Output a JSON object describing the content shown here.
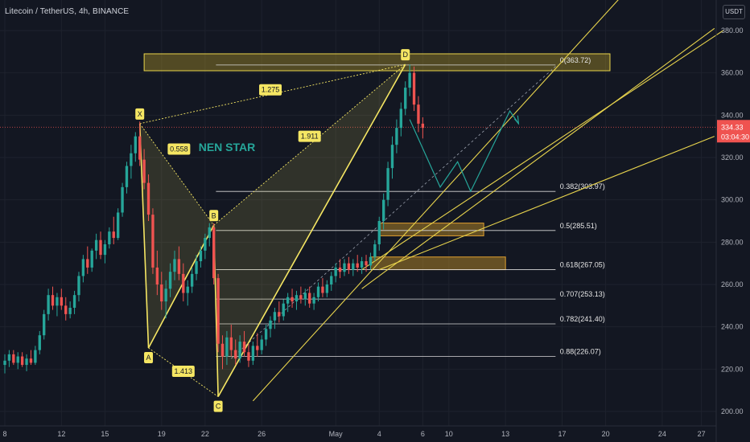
{
  "header": {
    "symbol_line": "Litecoin / TetherUS, 4h, BINANCE",
    "currency_button": "USDT"
  },
  "colors": {
    "background": "#131722",
    "up": "#26a69a",
    "down": "#ef5350",
    "pattern": "#f5e663",
    "zone_fill": "#c9a227",
    "price_tag": "#ef5350"
  },
  "current_price": {
    "value": 334.33,
    "label": "334.33",
    "countdown": "03:04:30"
  },
  "chart_data": {
    "type": "candlestick",
    "y_range": [
      198,
      388
    ],
    "x_range": [
      0,
      160
    ],
    "y_ticks": [
      200,
      220,
      240,
      260,
      280,
      300,
      320,
      340,
      360,
      380
    ],
    "y_tick_labels": [
      "200.00",
      "220.00",
      "240.00",
      "260.00",
      "280.00",
      "300.00",
      "320.00",
      "340.00",
      "360.00",
      "380.00"
    ],
    "x_ticks": [
      {
        "label": "8",
        "bar": 0
      },
      {
        "label": "12",
        "bar": 13
      },
      {
        "label": "15",
        "bar": 23
      },
      {
        "label": "19",
        "bar": 36
      },
      {
        "label": "22",
        "bar": 46
      },
      {
        "label": "26",
        "bar": 59
      },
      {
        "label": "May",
        "bar": 76
      },
      {
        "label": "4",
        "bar": 86
      },
      {
        "label": "6",
        "bar": 96
      },
      {
        "label": "10",
        "bar": 102
      },
      {
        "label": "13",
        "bar": 115
      },
      {
        "label": "17",
        "bar": 128
      },
      {
        "label": "20",
        "bar": 138
      },
      {
        "label": "24",
        "bar": 151
      },
      {
        "label": "27",
        "bar": 160
      }
    ],
    "harmonic_points": [
      {
        "label": "X",
        "bar": 31,
        "price": 336
      },
      {
        "label": "A",
        "bar": 33,
        "price": 230
      },
      {
        "label": "B",
        "bar": 48,
        "price": 288
      },
      {
        "label": "C",
        "bar": 49,
        "price": 207
      },
      {
        "label": "D",
        "bar": 92,
        "price": 364
      }
    ],
    "ratios": [
      {
        "label": "0.558",
        "bar": 40,
        "price": 324
      },
      {
        "label": "1.413",
        "bar": 41,
        "price": 219
      },
      {
        "label": "1.911",
        "bar": 70,
        "price": 330
      },
      {
        "label": "1.275",
        "bar": 61,
        "price": 352
      }
    ],
    "pattern_name": "NEN STAR",
    "fib_levels": [
      {
        "ratio": 0,
        "price": 363.72,
        "label": "0(363.72)"
      },
      {
        "ratio": 0.382,
        "price": 303.97,
        "label": "0.382(303.97)"
      },
      {
        "ratio": 0.5,
        "price": 285.51,
        "label": "0.5(285.51)"
      },
      {
        "ratio": 0.618,
        "price": 267.05,
        "label": "0.618(267.05)"
      },
      {
        "ratio": 0.707,
        "price": 253.13,
        "label": "0.707(253.13)"
      },
      {
        "ratio": 0.782,
        "price": 241.4,
        "label": "0.782(241.40)"
      },
      {
        "ratio": 0.88,
        "price": 226.07,
        "label": "0.88(226.07)"
      }
    ],
    "zones": [
      {
        "bar_from": 32,
        "bar_to": 139,
        "price_low": 361,
        "price_high": 369
      },
      {
        "bar_from": 86,
        "bar_to": 110,
        "price_low": 283,
        "price_high": 289
      },
      {
        "bar_from": 84,
        "bar_to": 115,
        "price_low": 267,
        "price_high": 273
      }
    ],
    "projection_path": [
      {
        "bar": 93,
        "price": 338
      },
      {
        "bar": 100,
        "price": 306
      },
      {
        "bar": 104,
        "price": 318
      },
      {
        "bar": 107,
        "price": 304
      },
      {
        "bar": 116,
        "price": 342
      },
      {
        "bar": 118,
        "price": 336
      }
    ],
    "candles": [
      {
        "o": 222,
        "h": 227,
        "l": 218,
        "c": 224
      },
      {
        "o": 224,
        "h": 229,
        "l": 221,
        "c": 227
      },
      {
        "o": 227,
        "h": 229,
        "l": 222,
        "c": 223
      },
      {
        "o": 223,
        "h": 228,
        "l": 220,
        "c": 226
      },
      {
        "o": 226,
        "h": 228,
        "l": 221,
        "c": 222
      },
      {
        "o": 222,
        "h": 227,
        "l": 219,
        "c": 225
      },
      {
        "o": 225,
        "h": 229,
        "l": 222,
        "c": 223
      },
      {
        "o": 223,
        "h": 231,
        "l": 222,
        "c": 229
      },
      {
        "o": 229,
        "h": 238,
        "l": 227,
        "c": 236
      },
      {
        "o": 236,
        "h": 248,
        "l": 234,
        "c": 246
      },
      {
        "o": 246,
        "h": 258,
        "l": 243,
        "c": 255
      },
      {
        "o": 255,
        "h": 259,
        "l": 248,
        "c": 250
      },
      {
        "o": 250,
        "h": 256,
        "l": 245,
        "c": 254
      },
      {
        "o": 254,
        "h": 258,
        "l": 248,
        "c": 250
      },
      {
        "o": 250,
        "h": 254,
        "l": 243,
        "c": 246
      },
      {
        "o": 246,
        "h": 252,
        "l": 244,
        "c": 249
      },
      {
        "o": 249,
        "h": 257,
        "l": 246,
        "c": 255
      },
      {
        "o": 255,
        "h": 266,
        "l": 252,
        "c": 264
      },
      {
        "o": 264,
        "h": 274,
        "l": 261,
        "c": 272
      },
      {
        "o": 272,
        "h": 278,
        "l": 265,
        "c": 268
      },
      {
        "o": 268,
        "h": 277,
        "l": 266,
        "c": 276
      },
      {
        "o": 276,
        "h": 284,
        "l": 272,
        "c": 281
      },
      {
        "o": 281,
        "h": 285,
        "l": 272,
        "c": 274
      },
      {
        "o": 274,
        "h": 281,
        "l": 270,
        "c": 279
      },
      {
        "o": 279,
        "h": 287,
        "l": 277,
        "c": 285
      },
      {
        "o": 285,
        "h": 292,
        "l": 279,
        "c": 282
      },
      {
        "o": 282,
        "h": 296,
        "l": 281,
        "c": 294
      },
      {
        "o": 294,
        "h": 308,
        "l": 292,
        "c": 306
      },
      {
        "o": 306,
        "h": 318,
        "l": 303,
        "c": 316
      },
      {
        "o": 316,
        "h": 326,
        "l": 310,
        "c": 322
      },
      {
        "o": 322,
        "h": 332,
        "l": 318,
        "c": 330
      },
      {
        "o": 330,
        "h": 337,
        "l": 316,
        "c": 319
      },
      {
        "o": 319,
        "h": 324,
        "l": 305,
        "c": 308
      },
      {
        "o": 308,
        "h": 312,
        "l": 290,
        "c": 293
      },
      {
        "o": 293,
        "h": 296,
        "l": 265,
        "c": 268
      },
      {
        "o": 268,
        "h": 276,
        "l": 255,
        "c": 260
      },
      {
        "o": 260,
        "h": 266,
        "l": 248,
        "c": 252
      },
      {
        "o": 252,
        "h": 262,
        "l": 244,
        "c": 258
      },
      {
        "o": 258,
        "h": 270,
        "l": 254,
        "c": 266
      },
      {
        "o": 266,
        "h": 276,
        "l": 262,
        "c": 272
      },
      {
        "o": 272,
        "h": 278,
        "l": 262,
        "c": 265
      },
      {
        "o": 265,
        "h": 270,
        "l": 252,
        "c": 256
      },
      {
        "o": 256,
        "h": 262,
        "l": 250,
        "c": 259
      },
      {
        "o": 259,
        "h": 268,
        "l": 256,
        "c": 265
      },
      {
        "o": 265,
        "h": 274,
        "l": 262,
        "c": 271
      },
      {
        "o": 271,
        "h": 278,
        "l": 268,
        "c": 276
      },
      {
        "o": 276,
        "h": 284,
        "l": 272,
        "c": 282
      },
      {
        "o": 282,
        "h": 289,
        "l": 278,
        "c": 287
      },
      {
        "o": 287,
        "h": 289,
        "l": 260,
        "c": 263
      },
      {
        "o": 263,
        "h": 265,
        "l": 228,
        "c": 232
      },
      {
        "o": 232,
        "h": 236,
        "l": 220,
        "c": 226
      },
      {
        "o": 226,
        "h": 238,
        "l": 222,
        "c": 235
      },
      {
        "o": 235,
        "h": 241,
        "l": 226,
        "c": 229
      },
      {
        "o": 229,
        "h": 234,
        "l": 222,
        "c": 225
      },
      {
        "o": 225,
        "h": 236,
        "l": 223,
        "c": 233
      },
      {
        "o": 233,
        "h": 238,
        "l": 226,
        "c": 228
      },
      {
        "o": 228,
        "h": 232,
        "l": 221,
        "c": 224
      },
      {
        "o": 224,
        "h": 233,
        "l": 222,
        "c": 231
      },
      {
        "o": 231,
        "h": 237,
        "l": 226,
        "c": 229
      },
      {
        "o": 229,
        "h": 236,
        "l": 227,
        "c": 234
      },
      {
        "o": 234,
        "h": 241,
        "l": 231,
        "c": 239
      },
      {
        "o": 239,
        "h": 245,
        "l": 235,
        "c": 243
      },
      {
        "o": 243,
        "h": 249,
        "l": 239,
        "c": 247
      },
      {
        "o": 247,
        "h": 252,
        "l": 242,
        "c": 245
      },
      {
        "o": 245,
        "h": 253,
        "l": 243,
        "c": 251
      },
      {
        "o": 251,
        "h": 256,
        "l": 247,
        "c": 254
      },
      {
        "o": 254,
        "h": 258,
        "l": 249,
        "c": 252
      },
      {
        "o": 252,
        "h": 257,
        "l": 248,
        "c": 255
      },
      {
        "o": 255,
        "h": 259,
        "l": 251,
        "c": 253
      },
      {
        "o": 253,
        "h": 258,
        "l": 250,
        "c": 256
      },
      {
        "o": 256,
        "h": 259,
        "l": 249,
        "c": 251
      },
      {
        "o": 251,
        "h": 256,
        "l": 248,
        "c": 254
      },
      {
        "o": 254,
        "h": 261,
        "l": 252,
        "c": 259
      },
      {
        "o": 259,
        "h": 263,
        "l": 254,
        "c": 256
      },
      {
        "o": 256,
        "h": 262,
        "l": 254,
        "c": 260
      },
      {
        "o": 260,
        "h": 266,
        "l": 257,
        "c": 264
      },
      {
        "o": 264,
        "h": 270,
        "l": 261,
        "c": 268
      },
      {
        "o": 268,
        "h": 272,
        "l": 263,
        "c": 266
      },
      {
        "o": 266,
        "h": 272,
        "l": 264,
        "c": 270
      },
      {
        "o": 270,
        "h": 273,
        "l": 265,
        "c": 267
      },
      {
        "o": 267,
        "h": 272,
        "l": 264,
        "c": 270
      },
      {
        "o": 270,
        "h": 274,
        "l": 266,
        "c": 268
      },
      {
        "o": 268,
        "h": 273,
        "l": 265,
        "c": 271
      },
      {
        "o": 271,
        "h": 274,
        "l": 266,
        "c": 269
      },
      {
        "o": 269,
        "h": 275,
        "l": 267,
        "c": 273
      },
      {
        "o": 273,
        "h": 281,
        "l": 271,
        "c": 279
      },
      {
        "o": 279,
        "h": 292,
        "l": 276,
        "c": 290
      },
      {
        "o": 290,
        "h": 303,
        "l": 286,
        "c": 300
      },
      {
        "o": 300,
        "h": 318,
        "l": 297,
        "c": 315
      },
      {
        "o": 315,
        "h": 330,
        "l": 310,
        "c": 326
      },
      {
        "o": 326,
        "h": 338,
        "l": 322,
        "c": 334
      },
      {
        "o": 334,
        "h": 346,
        "l": 330,
        "c": 343
      },
      {
        "o": 343,
        "h": 356,
        "l": 340,
        "c": 353
      },
      {
        "o": 353,
        "h": 364,
        "l": 349,
        "c": 360
      },
      {
        "o": 360,
        "h": 363,
        "l": 342,
        "c": 345
      },
      {
        "o": 345,
        "h": 349,
        "l": 332,
        "c": 336
      },
      {
        "o": 336,
        "h": 339,
        "l": 329,
        "c": 334
      }
    ]
  }
}
